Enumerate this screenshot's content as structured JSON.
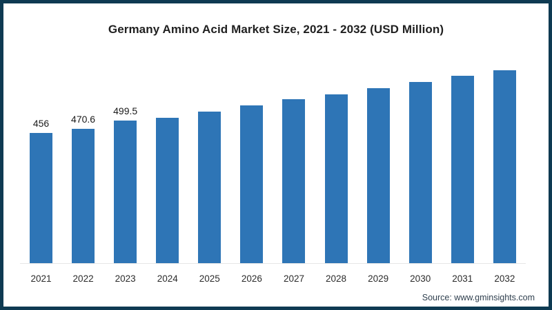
{
  "chart": {
    "title": "Germany Amino Acid Market Size, 2021 - 2032 (USD Million)",
    "source": "Source: www.gminsights.com"
  },
  "colors": {
    "frame_border": "#0e3a52",
    "bar": "#2e75b6",
    "background": "#ffffff",
    "baseline": "#e6e6e6"
  },
  "chart_data": {
    "type": "bar",
    "title": "Germany Amino Acid Market Size, 2021 - 2032 (USD Million)",
    "categories": [
      "2021",
      "2022",
      "2023",
      "2024",
      "2025",
      "2026",
      "2027",
      "2028",
      "2029",
      "2030",
      "2031",
      "2032"
    ],
    "values": [
      456,
      470.6,
      499.5,
      510,
      531,
      553,
      575,
      593,
      614,
      636,
      657,
      678
    ],
    "data_labels": [
      "456",
      "470.6",
      "499.5",
      "",
      "",
      "",
      "",
      "",
      "",
      "",
      "",
      ""
    ],
    "xlabel": "",
    "ylabel": "",
    "ylim": [
      0,
      740
    ],
    "grid": false,
    "legend": false,
    "bar_color": "#2e75b6",
    "note": "values for 2024-2032 estimated from bar heights; only first three bars carry visible data labels"
  }
}
